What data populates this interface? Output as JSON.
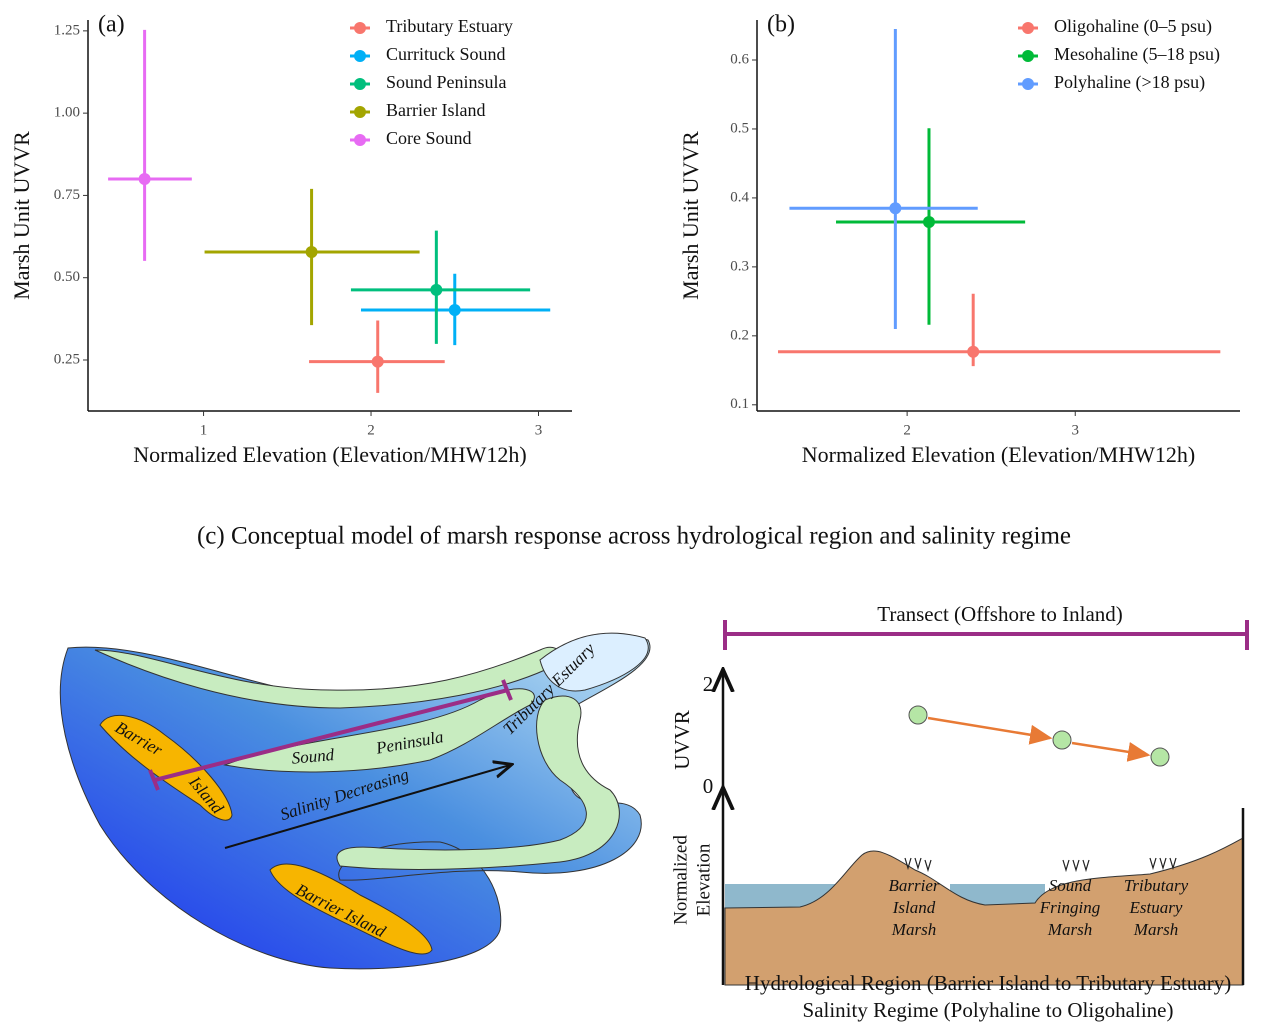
{
  "chart_data": [
    {
      "type": "scatter",
      "panel_label": "(a)",
      "x_label": "Normalized Elevation (Elevation/MHW12h)",
      "y_label": "Marsh Unit UVVR",
      "xlim": [
        0.31,
        3.2
      ],
      "ylim": [
        0.095,
        1.283
      ],
      "xticks": [
        1,
        2,
        3
      ],
      "yticks": [
        0.25,
        {
          "value": 0.5,
          "label": "0.50"
        },
        0.75,
        {
          "value": 1,
          "label": "1.00"
        },
        1.25
      ],
      "legend": "top-right",
      "series": [
        {
          "name": "Tributary Estuary",
          "color": "#F8766D",
          "x": [
            2.04
          ],
          "values": [
            0.245
          ],
          "x_low": [
            1.63
          ],
          "x_high": [
            2.44
          ],
          "y_low": [
            0.15
          ],
          "y_high": [
            0.37
          ]
        },
        {
          "name": "Currituck Sound",
          "color": "#00B0F6",
          "x": [
            2.5
          ],
          "values": [
            0.402
          ],
          "x_low": [
            1.94
          ],
          "x_high": [
            3.07
          ],
          "y_low": [
            0.295
          ],
          "y_high": [
            0.512
          ]
        },
        {
          "name": "Sound Peninsula",
          "color": "#00BF7D",
          "x": [
            2.39
          ],
          "values": [
            0.463
          ],
          "x_low": [
            1.88
          ],
          "x_high": [
            2.95
          ],
          "y_low": [
            0.299
          ],
          "y_high": [
            0.643
          ]
        },
        {
          "name": "Barrier Island",
          "color": "#A3A500",
          "x": [
            1.645
          ],
          "values": [
            0.578
          ],
          "x_low": [
            1.006
          ],
          "x_high": [
            2.29
          ],
          "y_low": [
            0.356
          ],
          "y_high": [
            0.77
          ]
        },
        {
          "name": "Core Sound",
          "color": "#E76BF3",
          "x": [
            0.648
          ],
          "values": [
            0.8
          ],
          "x_low": [
            0.43
          ],
          "x_high": [
            0.93
          ],
          "y_low": [
            0.551
          ],
          "y_high": [
            1.253
          ]
        }
      ]
    },
    {
      "type": "scatter",
      "panel_label": "(b)",
      "x_label": "Normalized Elevation (Elevation/MHW12h)",
      "y_label": "Marsh Unit UVVR",
      "xlim": [
        1.107,
        3.98
      ],
      "ylim": [
        0.091,
        0.658
      ],
      "xticks": [
        2,
        3
      ],
      "yticks": [
        0.1,
        0.2,
        0.3,
        0.4,
        0.5,
        0.6
      ],
      "legend": "top-right",
      "series": [
        {
          "name": "Oligohaline (0–5 psu)",
          "color": "#F8766D",
          "x": [
            2.393
          ],
          "values": [
            0.177
          ],
          "x_low": [
            1.232
          ],
          "x_high": [
            3.863
          ],
          "y_low": [
            0.156
          ],
          "y_high": [
            0.261
          ]
        },
        {
          "name": "Mesohaline (5–18 psu)",
          "color": "#00BA38",
          "x": [
            2.13
          ],
          "values": [
            0.365
          ],
          "x_low": [
            1.577
          ],
          "x_high": [
            2.702
          ],
          "y_low": [
            0.216
          ],
          "y_high": [
            0.501
          ]
        },
        {
          "name": "Polyhaline (>18 psu)",
          "color": "#619CFF",
          "x": [
            1.93
          ],
          "values": [
            0.385
          ],
          "x_low": [
            1.3
          ],
          "x_high": [
            2.42
          ],
          "y_low": [
            0.21
          ],
          "y_high": [
            0.645
          ]
        }
      ]
    }
  ],
  "caption": "(c) Conceptual model of marsh response across hydrological region and salinity regime",
  "diagram": {
    "map_labels": {
      "barrier_north": [
        "Barrier",
        "Island"
      ],
      "sound_peninsula": [
        "Sound",
        "Peninsula"
      ],
      "tributary_estuary": "Tributary Estuary",
      "salinity": "Salinity Decreasing",
      "barrier_south": "Barrier Island"
    },
    "transect": "Transect (Offshore to Inland)",
    "uvvr_axis": {
      "label": "UVVR",
      "top": 2,
      "bottom": 0
    },
    "elevation_axis": [
      "Normalized",
      "Elevation"
    ],
    "marsh_labels": [
      [
        "Barrier",
        "Island",
        "Marsh"
      ],
      [
        "Sound",
        "Fringing",
        "Marsh"
      ],
      [
        "Tributary",
        "Estuary",
        "Marsh"
      ]
    ],
    "x_labels": [
      "Hydrological Region (Barrier Island to Tributary Estuary)",
      "Salinity Regime (Polyhaline to Oligohaline)"
    ]
  }
}
